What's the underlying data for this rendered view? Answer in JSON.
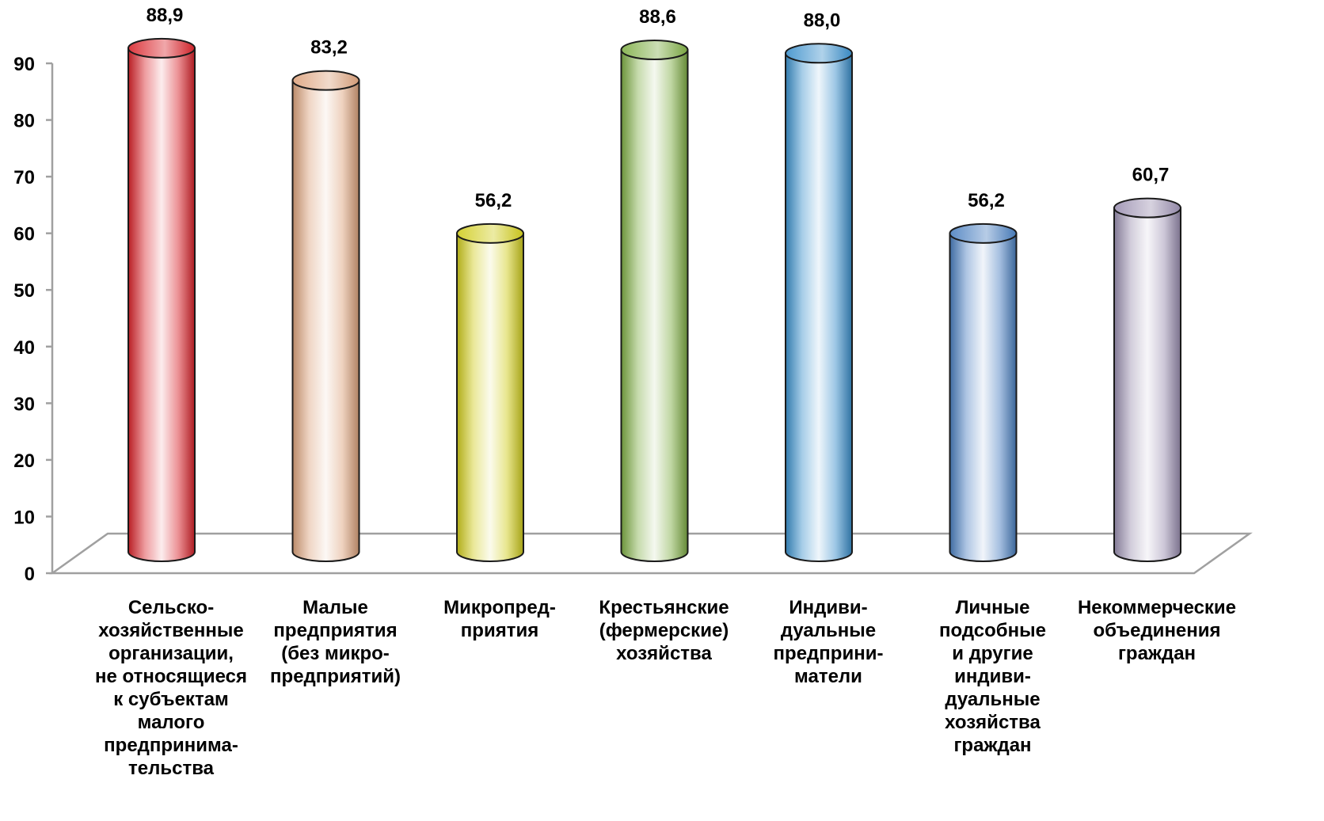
{
  "chart_data": {
    "type": "bar",
    "title": "",
    "xlabel": "",
    "ylabel": "",
    "ylim": [
      0,
      90
    ],
    "yticks": [
      0,
      10,
      20,
      30,
      40,
      50,
      60,
      70,
      80,
      90
    ],
    "grid": false,
    "legend": "none",
    "categories": [
      [
        "Сельско-",
        "хозяйственные",
        "организации,",
        "не относящиеся",
        "к субъектам",
        "малого",
        "предпринима-",
        "тельства"
      ],
      [
        "Малые",
        "предприятия",
        "(без микро-",
        "предприятий)"
      ],
      [
        "Микропред-",
        "приятия"
      ],
      [
        "Крестьянские",
        "(фермерские)",
        "хозяйства"
      ],
      [
        "Индиви-",
        "дуальные",
        "предприни-",
        "матели"
      ],
      [
        "Личные",
        "подсобные",
        "и другие",
        "индиви-",
        "дуальные",
        "хозяйства",
        "граждан"
      ],
      [
        "Некоммерческие",
        "объединения",
        "граждан"
      ]
    ],
    "values": [
      88.9,
      83.2,
      56.2,
      88.6,
      88.0,
      56.2,
      60.7
    ],
    "value_labels": [
      "88,9",
      "83,2",
      "56,2",
      "88,6",
      "88,0",
      "56,2",
      "60,7"
    ],
    "colors": [
      "#d9232a",
      "#dca27c",
      "#d0cc1c",
      "#7ead44",
      "#3a8fcb",
      "#4a7fc0",
      "#9a8fb0"
    ]
  }
}
